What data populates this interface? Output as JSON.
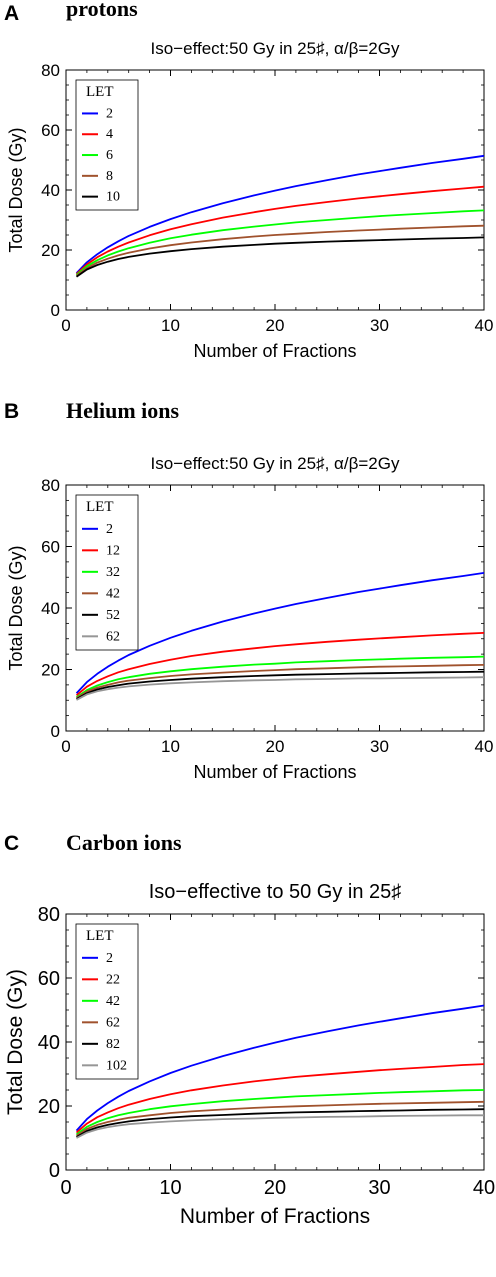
{
  "chart_data": [
    {
      "panel_letter": "A",
      "heading": "protons",
      "type": "line",
      "title": "Iso−effect:50 Gy in 25♯, α/β=2Gy",
      "xlabel": "Number of Fractions",
      "ylabel": "Total Dose (Gy)",
      "xlim": [
        0,
        40
      ],
      "ylim": [
        0,
        80
      ],
      "xticks": [
        0,
        10,
        20,
        30,
        40
      ],
      "yticks": [
        0,
        20,
        40,
        60,
        80
      ],
      "legend_title": "LET",
      "legend_position": "top-left",
      "grid": false,
      "x": [
        1,
        2,
        3,
        4,
        5,
        6,
        8,
        10,
        12,
        15,
        18,
        20,
        22,
        25,
        28,
        30,
        32,
        35,
        38,
        40
      ],
      "series": [
        {
          "name": "2",
          "color": "#0000ff",
          "values": [
            12.3,
            15.9,
            18.6,
            20.9,
            22.9,
            24.7,
            27.7,
            30.3,
            32.6,
            35.6,
            38.2,
            39.8,
            41.3,
            43.3,
            45.2,
            46.3,
            47.4,
            49.0,
            50.4,
            51.4
          ]
        },
        {
          "name": "4",
          "color": "#ff0000",
          "values": [
            12.0,
            15.2,
            17.6,
            19.5,
            21.1,
            22.5,
            24.9,
            26.9,
            28.6,
            30.8,
            32.6,
            33.7,
            34.7,
            36.0,
            37.2,
            37.9,
            38.6,
            39.6,
            40.5,
            41.1
          ]
        },
        {
          "name": "6",
          "color": "#00ff00",
          "values": [
            11.7,
            14.6,
            16.6,
            18.2,
            19.5,
            20.6,
            22.4,
            23.9,
            25.1,
            26.6,
            27.8,
            28.5,
            29.2,
            30.0,
            30.8,
            31.3,
            31.7,
            32.3,
            32.9,
            33.2
          ]
        },
        {
          "name": "8",
          "color": "#a0522d",
          "values": [
            11.4,
            14.0,
            15.8,
            17.1,
            18.2,
            19.1,
            20.5,
            21.6,
            22.5,
            23.6,
            24.5,
            25.0,
            25.4,
            26.0,
            26.5,
            26.8,
            27.1,
            27.5,
            27.9,
            28.1
          ]
        },
        {
          "name": "10",
          "color": "#000000",
          "values": [
            11.1,
            13.5,
            15.0,
            16.1,
            17.0,
            17.7,
            18.8,
            19.6,
            20.3,
            21.1,
            21.7,
            22.1,
            22.4,
            22.8,
            23.1,
            23.3,
            23.5,
            23.8,
            24.0,
            24.2
          ]
        }
      ]
    },
    {
      "panel_letter": "B",
      "heading": "Helium ions",
      "type": "line",
      "title": "Iso−effect:50 Gy in 25♯, α/β=2Gy",
      "xlabel": "Number of Fractions",
      "ylabel": "Total Dose (Gy)",
      "xlim": [
        0,
        40
      ],
      "ylim": [
        0,
        80
      ],
      "xticks": [
        0,
        10,
        20,
        30,
        40
      ],
      "yticks": [
        0,
        20,
        40,
        60,
        80
      ],
      "legend_title": "LET",
      "legend_position": "top-left",
      "grid": false,
      "x": [
        1,
        2,
        3,
        4,
        5,
        6,
        8,
        10,
        12,
        15,
        18,
        20,
        22,
        25,
        28,
        30,
        32,
        35,
        38,
        40
      ],
      "series": [
        {
          "name": "2",
          "color": "#0000ff",
          "values": [
            12.3,
            15.9,
            18.6,
            20.9,
            22.9,
            24.7,
            27.7,
            30.3,
            32.6,
            35.6,
            38.2,
            39.8,
            41.3,
            43.3,
            45.2,
            46.3,
            47.4,
            49.0,
            50.4,
            51.4
          ]
        },
        {
          "name": "12",
          "color": "#ff0000",
          "values": [
            11.6,
            14.4,
            16.3,
            17.8,
            19.1,
            20.1,
            21.8,
            23.2,
            24.4,
            25.8,
            26.9,
            27.6,
            28.2,
            29.0,
            29.7,
            30.1,
            30.5,
            31.1,
            31.6,
            31.9
          ]
        },
        {
          "name": "32",
          "color": "#00ff00",
          "values": [
            11.0,
            13.3,
            14.8,
            15.9,
            16.8,
            17.5,
            18.6,
            19.4,
            20.1,
            20.9,
            21.6,
            21.9,
            22.3,
            22.7,
            23.1,
            23.3,
            23.5,
            23.8,
            24.0,
            24.2
          ]
        },
        {
          "name": "42",
          "color": "#a0522d",
          "values": [
            10.7,
            12.8,
            14.1,
            15.0,
            15.8,
            16.4,
            17.2,
            17.9,
            18.4,
            19.0,
            19.5,
            19.8,
            20.1,
            20.4,
            20.7,
            20.9,
            21.0,
            21.2,
            21.4,
            21.5
          ]
        },
        {
          "name": "52",
          "color": "#000000",
          "values": [
            10.4,
            12.3,
            13.5,
            14.3,
            14.9,
            15.4,
            16.1,
            16.6,
            17.0,
            17.5,
            17.9,
            18.1,
            18.3,
            18.5,
            18.7,
            18.8,
            18.9,
            19.1,
            19.2,
            19.3
          ]
        },
        {
          "name": "62",
          "color": "#969696",
          "values": [
            10.1,
            11.9,
            12.9,
            13.6,
            14.1,
            14.5,
            15.1,
            15.5,
            15.8,
            16.2,
            16.5,
            16.6,
            16.8,
            16.9,
            17.1,
            17.1,
            17.2,
            17.3,
            17.4,
            17.5
          ]
        }
      ]
    },
    {
      "panel_letter": "C",
      "heading": "Carbon ions",
      "type": "line",
      "title": "Iso−effective to 50 Gy in 25♯",
      "xlabel": "Number of Fractions",
      "ylabel": "Total Dose (Gy)",
      "xlim": [
        0,
        40
      ],
      "ylim": [
        0,
        80
      ],
      "xticks": [
        0,
        10,
        20,
        30,
        40
      ],
      "yticks": [
        0,
        20,
        40,
        60,
        80
      ],
      "legend_title": "LET",
      "legend_position": "top-left",
      "grid": false,
      "x": [
        1,
        2,
        3,
        4,
        5,
        6,
        8,
        10,
        12,
        15,
        18,
        20,
        22,
        25,
        28,
        30,
        32,
        35,
        38,
        40
      ],
      "series": [
        {
          "name": "2",
          "color": "#0000ff",
          "values": [
            12.3,
            15.9,
            18.6,
            20.9,
            22.9,
            24.7,
            27.7,
            30.3,
            32.6,
            35.6,
            38.2,
            39.8,
            41.3,
            43.3,
            45.2,
            46.3,
            47.4,
            49.0,
            50.4,
            51.4
          ]
        },
        {
          "name": "22",
          "color": "#ff0000",
          "values": [
            11.7,
            14.5,
            16.5,
            18.0,
            19.3,
            20.4,
            22.2,
            23.7,
            24.9,
            26.4,
            27.7,
            28.4,
            29.1,
            29.9,
            30.7,
            31.2,
            31.6,
            32.2,
            32.8,
            33.1
          ]
        },
        {
          "name": "42",
          "color": "#00ff00",
          "values": [
            11.1,
            13.5,
            15.0,
            16.2,
            17.1,
            17.8,
            19.0,
            19.9,
            20.6,
            21.5,
            22.2,
            22.6,
            23.0,
            23.4,
            23.8,
            24.1,
            24.3,
            24.6,
            24.9,
            25.0
          ]
        },
        {
          "name": "62",
          "color": "#a0522d",
          "values": [
            10.7,
            12.8,
            14.1,
            15.0,
            15.7,
            16.3,
            17.1,
            17.8,
            18.3,
            18.9,
            19.4,
            19.7,
            19.9,
            20.2,
            20.5,
            20.7,
            20.8,
            21.0,
            21.2,
            21.3
          ]
        },
        {
          "name": "82",
          "color": "#000000",
          "values": [
            10.3,
            12.2,
            13.3,
            14.1,
            14.7,
            15.2,
            15.9,
            16.4,
            16.8,
            17.2,
            17.6,
            17.8,
            18.0,
            18.2,
            18.4,
            18.5,
            18.6,
            18.8,
            18.9,
            19.0
          ]
        },
        {
          "name": "102",
          "color": "#969696",
          "values": [
            10.0,
            11.7,
            12.7,
            13.4,
            13.9,
            14.3,
            14.8,
            15.2,
            15.5,
            15.9,
            16.1,
            16.3,
            16.4,
            16.6,
            16.7,
            16.8,
            16.9,
            17.0,
            17.1,
            17.1
          ]
        }
      ]
    }
  ]
}
